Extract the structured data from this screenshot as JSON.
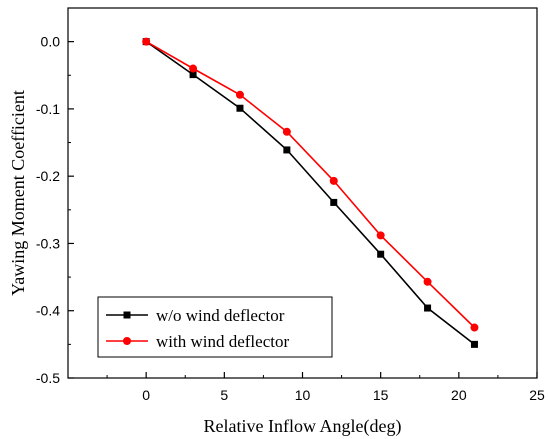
{
  "chart_data": {
    "type": "line",
    "title": "",
    "xlabel": "Relative Inflow Angle(deg)",
    "ylabel": "Yawing Moment Coefficient",
    "xlim": [
      -5,
      25
    ],
    "ylim": [
      -0.5,
      0.05
    ],
    "xticks": [
      0,
      5,
      10,
      15,
      20,
      25
    ],
    "yticks": [
      0.0,
      -0.1,
      -0.2,
      -0.3,
      -0.4,
      -0.5
    ],
    "x_tick_labels": [
      "0",
      "5",
      "10",
      "15",
      "20",
      "25"
    ],
    "y_tick_labels": [
      "0.0",
      "-0.1",
      "-0.2",
      "-0.3",
      "-0.4",
      "-0.5"
    ],
    "grid": false,
    "legend_position": "bottom-left",
    "x": [
      0,
      3,
      6,
      9,
      12,
      15,
      18,
      21
    ],
    "series": [
      {
        "name": "w/o wind deflector",
        "color": "#000000",
        "marker": "square",
        "values": [
          0.0,
          -0.049,
          -0.099,
          -0.161,
          -0.239,
          -0.316,
          -0.396,
          -0.45
        ]
      },
      {
        "name": "with wind deflector",
        "color": "#ff0000",
        "marker": "circle",
        "values": [
          0.0,
          -0.04,
          -0.079,
          -0.134,
          -0.207,
          -0.288,
          -0.357,
          -0.425
        ]
      }
    ]
  }
}
